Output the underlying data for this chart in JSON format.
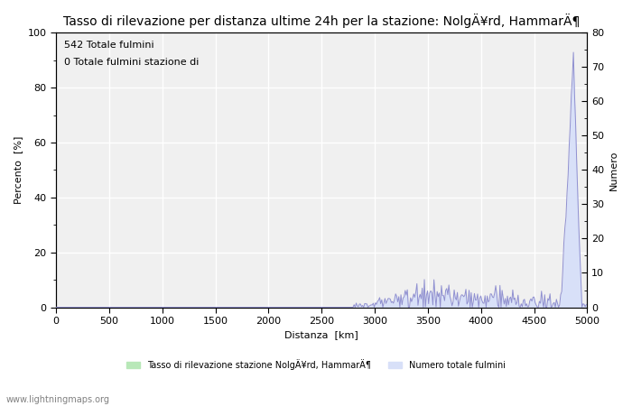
{
  "title": "Tasso di rilevazione per distanza ultime 24h per la stazione: NolgÄ¥rd, HammarÄ¶",
  "xlabel": "Distanza  [km]",
  "ylabel_left": "Percento  [%]",
  "ylabel_right": "Numero",
  "annotation1": "542 Totale fulmini",
  "annotation2": "0 Totale fulmini stazione di",
  "legend_label1": "Tasso di rilevazione stazione NolgÄ¥rd, HammarÄ¶",
  "legend_label2": "Numero totale fulmini",
  "website": "www.lightningmaps.org",
  "ylim_left": [
    0,
    100
  ],
  "ylim_right": [
    0,
    80
  ],
  "xlim": [
    0,
    5000
  ],
  "color_green": "#b8e8b8",
  "color_blue_fill": "#d8e0f8",
  "color_blue_line": "#9090d0",
  "background_color": "#ffffff",
  "plot_bg_color": "#f0f0f0",
  "grid_color": "#ffffff",
  "title_fontsize": 10,
  "label_fontsize": 8,
  "tick_fontsize": 8,
  "annot_fontsize": 8
}
